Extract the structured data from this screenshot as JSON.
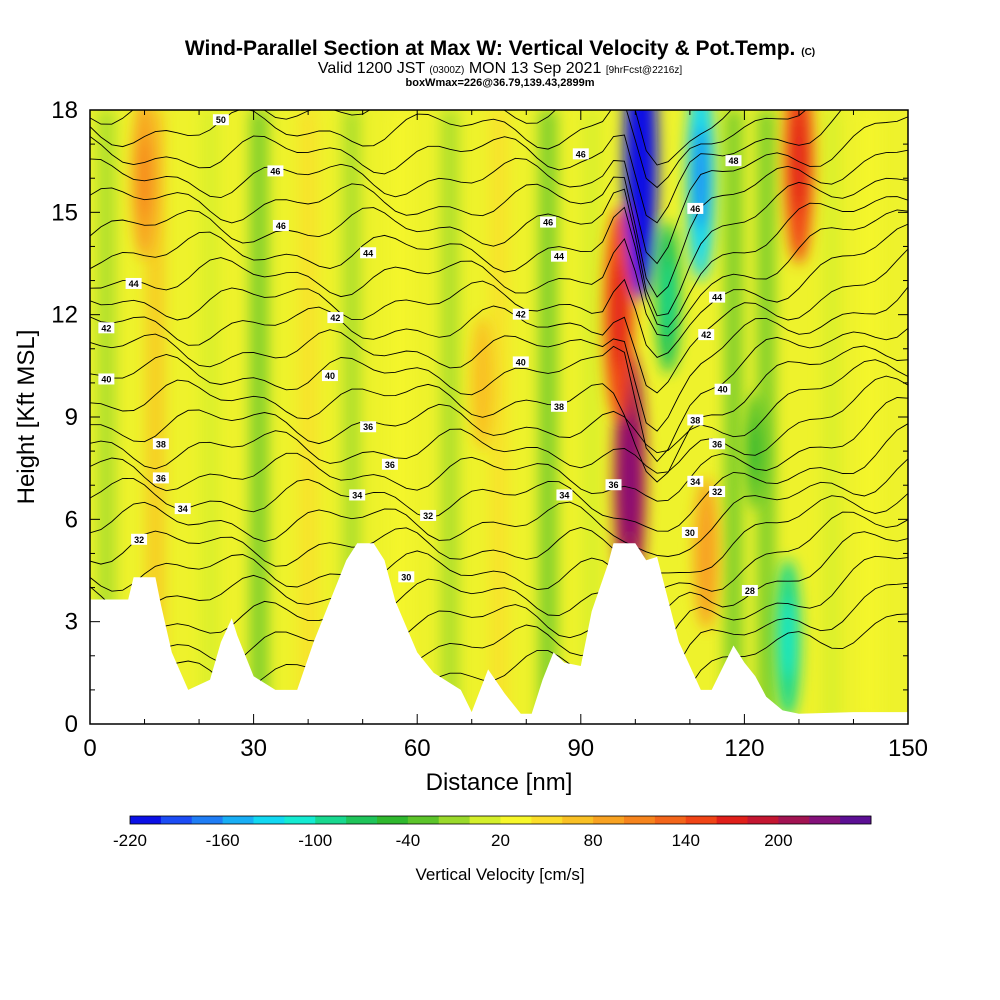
{
  "titles": {
    "main": "Wind-Parallel Section at Max W: Vertical Velocity & Pot.Temp.",
    "main_mark": "(C)",
    "valid_a": "Valid 1200 JST",
    "valid_b": "(0300Z)",
    "valid_c": "MON 13 Sep 2021",
    "valid_d": "[9hrFcst@2216z]",
    "box": "boxWmax=226@36.79,139.43,2899m"
  },
  "chart_data": {
    "type": "heatmap",
    "xlabel": "Distance [nm]",
    "ylabel": "Height [Kft MSL]",
    "xlim": [
      0,
      150
    ],
    "ylim": [
      0,
      18
    ],
    "x_ticks": [
      0,
      30,
      60,
      90,
      120,
      150
    ],
    "y_ticks": [
      0,
      3,
      6,
      9,
      12,
      15,
      18
    ],
    "colorbar": {
      "label": "Vertical Velocity [cm/s]",
      "tick_labels": [
        -220,
        -160,
        -100,
        -40,
        20,
        80,
        140,
        200
      ],
      "colors": [
        "#0b10e6",
        "#1c4cf5",
        "#1f7df5",
        "#18aef5",
        "#12d8f2",
        "#14ebd2",
        "#18d88f",
        "#1fc45a",
        "#2fb82e",
        "#5cc42a",
        "#9ad92b",
        "#d4ef2b",
        "#f7f72a",
        "#fbdd29",
        "#f9c024",
        "#f8a221",
        "#f6841d",
        "#f3651a",
        "#f04416",
        "#e01f1a",
        "#c41631",
        "#a21352",
        "#84117a",
        "#5c0f94"
      ]
    },
    "terrain_nm_kft": [
      [
        0,
        3.65
      ],
      [
        7,
        3.65
      ],
      [
        8,
        4.3
      ],
      [
        12,
        4.3
      ],
      [
        13,
        3.5
      ],
      [
        15,
        2.1
      ],
      [
        18,
        1.0
      ],
      [
        22,
        1.3
      ],
      [
        24,
        2.4
      ],
      [
        26,
        3.1
      ],
      [
        27,
        2.6
      ],
      [
        30,
        1.4
      ],
      [
        34,
        1.0
      ],
      [
        38,
        1.0
      ],
      [
        41,
        2.4
      ],
      [
        44,
        3.6
      ],
      [
        47,
        4.8
      ],
      [
        49,
        5.3
      ],
      [
        52,
        5.3
      ],
      [
        54,
        4.8
      ],
      [
        56,
        3.6
      ],
      [
        60,
        2.1
      ],
      [
        63,
        1.5
      ],
      [
        68,
        1.0
      ],
      [
        70,
        0.35
      ],
      [
        73,
        1.6
      ],
      [
        76,
        0.9
      ],
      [
        79,
        0.3
      ],
      [
        81,
        0.3
      ],
      [
        83,
        1.3
      ],
      [
        85,
        2.1
      ],
      [
        87,
        1.8
      ],
      [
        90,
        1.7
      ],
      [
        92,
        3.3
      ],
      [
        95,
        4.7
      ],
      [
        96,
        5.3
      ],
      [
        100,
        5.3
      ],
      [
        102,
        4.8
      ],
      [
        104,
        4.9
      ],
      [
        108,
        2.4
      ],
      [
        112,
        1.0
      ],
      [
        114,
        1.0
      ],
      [
        118,
        2.3
      ],
      [
        120,
        1.8
      ],
      [
        122,
        1.4
      ],
      [
        124,
        0.8
      ],
      [
        127,
        0.4
      ],
      [
        130,
        0.3
      ],
      [
        140,
        0.35
      ],
      [
        150,
        0.35
      ]
    ],
    "updrafts": [
      {
        "x_nm": 99,
        "y_kft": 7.2,
        "w_cm_s": 200
      },
      {
        "x_nm": 97,
        "y_kft": 12.0,
        "w_cm_s": 150
      },
      {
        "x_nm": 130,
        "y_kft": 16.5,
        "w_cm_s": 140
      },
      {
        "x_nm": 10,
        "y_kft": 16.0,
        "w_cm_s": 90
      },
      {
        "x_nm": 113,
        "y_kft": 5.0,
        "w_cm_s": 80
      },
      {
        "x_nm": 72,
        "y_kft": 10.0,
        "w_cm_s": 60
      }
    ],
    "downdrafts": [
      {
        "x_nm": 101,
        "y_kft": 16.5,
        "w_cm_s": -220
      },
      {
        "x_nm": 112,
        "y_kft": 16.0,
        "w_cm_s": -140
      },
      {
        "x_nm": 106,
        "y_kft": 12.5,
        "w_cm_s": -80
      },
      {
        "x_nm": 128,
        "y_kft": 2.5,
        "w_cm_s": -90
      },
      {
        "x_nm": 122,
        "y_kft": 8.0,
        "w_cm_s": -40
      }
    ],
    "theta_contour_labels": [
      {
        "text": "50",
        "x_nm": 24,
        "y_kft": 17.7
      },
      {
        "text": "46",
        "x_nm": 34,
        "y_kft": 16.2
      },
      {
        "text": "46",
        "x_nm": 35,
        "y_kft": 14.6
      },
      {
        "text": "44",
        "x_nm": 51,
        "y_kft": 13.8
      },
      {
        "text": "44",
        "x_nm": 8,
        "y_kft": 12.9
      },
      {
        "text": "42",
        "x_nm": 3,
        "y_kft": 11.6
      },
      {
        "text": "42",
        "x_nm": 45,
        "y_kft": 11.9
      },
      {
        "text": "40",
        "x_nm": 3,
        "y_kft": 10.1
      },
      {
        "text": "40",
        "x_nm": 44,
        "y_kft": 10.2
      },
      {
        "text": "38",
        "x_nm": 13,
        "y_kft": 8.2
      },
      {
        "text": "36",
        "x_nm": 51,
        "y_kft": 8.7
      },
      {
        "text": "36",
        "x_nm": 13,
        "y_kft": 7.2
      },
      {
        "text": "36",
        "x_nm": 55,
        "y_kft": 7.6
      },
      {
        "text": "34",
        "x_nm": 17,
        "y_kft": 6.3
      },
      {
        "text": "34",
        "x_nm": 49,
        "y_kft": 6.7
      },
      {
        "text": "32",
        "x_nm": 9,
        "y_kft": 5.4
      },
      {
        "text": "32",
        "x_nm": 62,
        "y_kft": 6.1
      },
      {
        "text": "30",
        "x_nm": 58,
        "y_kft": 4.3
      },
      {
        "text": "46",
        "x_nm": 90,
        "y_kft": 16.7
      },
      {
        "text": "46",
        "x_nm": 84,
        "y_kft": 14.7
      },
      {
        "text": "44",
        "x_nm": 86,
        "y_kft": 13.7
      },
      {
        "text": "42",
        "x_nm": 79,
        "y_kft": 12.0
      },
      {
        "text": "40",
        "x_nm": 79,
        "y_kft": 10.6
      },
      {
        "text": "38",
        "x_nm": 86,
        "y_kft": 9.3
      },
      {
        "text": "34",
        "x_nm": 87,
        "y_kft": 6.7
      },
      {
        "text": "36",
        "x_nm": 96,
        "y_kft": 7.0
      },
      {
        "text": "48",
        "x_nm": 118,
        "y_kft": 16.5
      },
      {
        "text": "46",
        "x_nm": 111,
        "y_kft": 15.1
      },
      {
        "text": "44",
        "x_nm": 115,
        "y_kft": 12.5
      },
      {
        "text": "42",
        "x_nm": 113,
        "y_kft": 11.4
      },
      {
        "text": "40",
        "x_nm": 116,
        "y_kft": 9.8
      },
      {
        "text": "38",
        "x_nm": 111,
        "y_kft": 8.9
      },
      {
        "text": "36",
        "x_nm": 115,
        "y_kft": 8.2
      },
      {
        "text": "34",
        "x_nm": 111,
        "y_kft": 7.1
      },
      {
        "text": "32",
        "x_nm": 115,
        "y_kft": 6.8
      },
      {
        "text": "30",
        "x_nm": 110,
        "y_kft": 5.6
      },
      {
        "text": "28",
        "x_nm": 121,
        "y_kft": 3.9
      }
    ]
  }
}
